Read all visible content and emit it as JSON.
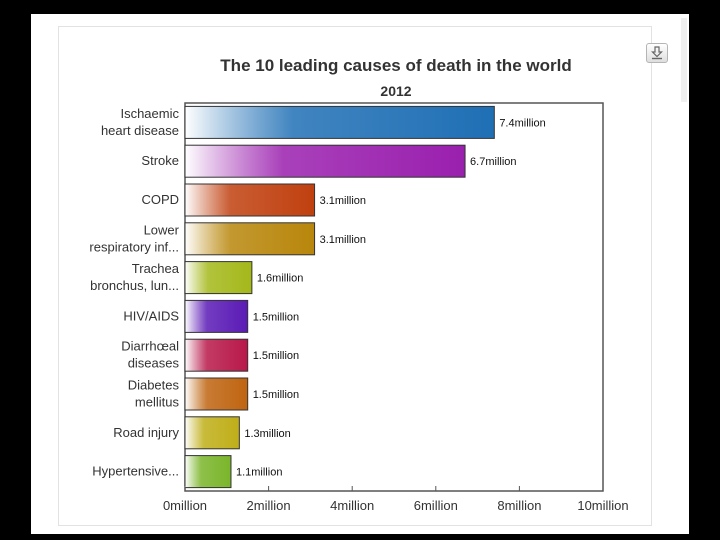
{
  "chart_data": {
    "type": "bar",
    "orientation": "horizontal",
    "title": "The 10 leading causes of death in the world",
    "subtitle": "2012",
    "categories": [
      [
        "Ischaemic",
        "heart disease"
      ],
      [
        "Stroke"
      ],
      [
        "COPD"
      ],
      [
        "Lower",
        "respiratory inf..."
      ],
      [
        "Trachea",
        "bronchus, lun..."
      ],
      [
        "HIV/AIDS"
      ],
      [
        "Diarrhœal",
        "diseases"
      ],
      [
        "Diabetes",
        "mellitus"
      ],
      [
        "Road injury"
      ],
      [
        "Hypertensive..."
      ]
    ],
    "values": [
      7.4,
      6.7,
      3.1,
      3.1,
      1.6,
      1.5,
      1.5,
      1.5,
      1.3,
      1.1
    ],
    "value_labels": [
      "7.4million",
      "6.7million",
      "3.1million",
      "3.1million",
      "1.6million",
      "1.5million",
      "1.5million",
      "1.5million",
      "1.3million",
      "1.1million"
    ],
    "colors": [
      "#1f6fb5",
      "#9a1fae",
      "#c0400f",
      "#b8860b",
      "#a4b81a",
      "#5a1ab5",
      "#b8184a",
      "#bf6410",
      "#bfae18",
      "#7ab52a"
    ],
    "xaxis": {
      "ticks": [
        0,
        2,
        4,
        6,
        8,
        10
      ],
      "tick_labels": [
        "0million",
        "2million",
        "4million",
        "6million",
        "8million",
        "10million"
      ]
    },
    "xlim": [
      0,
      10
    ],
    "grid": false,
    "legend": "none"
  },
  "icons": {
    "download": "download-icon"
  }
}
